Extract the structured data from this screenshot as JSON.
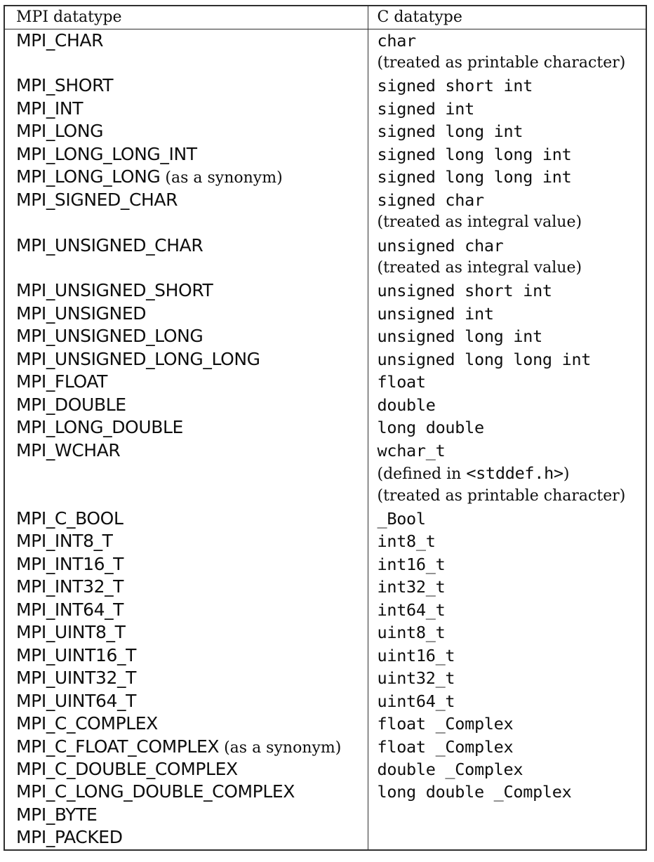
{
  "colors": {
    "background": "#ffffff",
    "text": "#0e0e0e",
    "border": "#2f2f2f"
  },
  "table": {
    "header": {
      "mpi": "MPI datatype",
      "c": "C datatype"
    },
    "rows": [
      {
        "mpi": "MPI_CHAR",
        "note": "",
        "c": [
          [
            "mono",
            "char"
          ]
        ]
      },
      {
        "mpi": "",
        "note": "",
        "c": [
          [
            "serif",
            "(treated as printable character)"
          ]
        ]
      },
      {
        "mpi": "MPI_SHORT",
        "note": "",
        "c": [
          [
            "mono",
            "signed short int"
          ]
        ]
      },
      {
        "mpi": "MPI_INT",
        "note": "",
        "c": [
          [
            "mono",
            "signed int"
          ]
        ]
      },
      {
        "mpi": "MPI_LONG",
        "note": "",
        "c": [
          [
            "mono",
            "signed long int"
          ]
        ]
      },
      {
        "mpi": "MPI_LONG_LONG_INT",
        "note": "",
        "c": [
          [
            "mono",
            "signed long long int"
          ]
        ]
      },
      {
        "mpi": "MPI_LONG_LONG",
        "note": "(as a synonym)",
        "c": [
          [
            "mono",
            "signed long long int"
          ]
        ]
      },
      {
        "mpi": "MPI_SIGNED_CHAR",
        "note": "",
        "c": [
          [
            "mono",
            "signed char"
          ]
        ]
      },
      {
        "mpi": "",
        "note": "",
        "c": [
          [
            "serif",
            "(treated as integral value)"
          ]
        ]
      },
      {
        "mpi": "MPI_UNSIGNED_CHAR",
        "note": "",
        "c": [
          [
            "mono",
            "unsigned char"
          ]
        ]
      },
      {
        "mpi": "",
        "note": "",
        "c": [
          [
            "serif",
            "(treated as integral value)"
          ]
        ]
      },
      {
        "mpi": "MPI_UNSIGNED_SHORT",
        "note": "",
        "c": [
          [
            "mono",
            "unsigned short int"
          ]
        ]
      },
      {
        "mpi": "MPI_UNSIGNED",
        "note": "",
        "c": [
          [
            "mono",
            "unsigned int"
          ]
        ]
      },
      {
        "mpi": "MPI_UNSIGNED_LONG",
        "note": "",
        "c": [
          [
            "mono",
            "unsigned long int"
          ]
        ]
      },
      {
        "mpi": "MPI_UNSIGNED_LONG_LONG",
        "note": "",
        "c": [
          [
            "mono",
            "unsigned long long int"
          ]
        ]
      },
      {
        "mpi": "MPI_FLOAT",
        "note": "",
        "c": [
          [
            "mono",
            "float"
          ]
        ]
      },
      {
        "mpi": "MPI_DOUBLE",
        "note": "",
        "c": [
          [
            "mono",
            "double"
          ]
        ]
      },
      {
        "mpi": "MPI_LONG_DOUBLE",
        "note": "",
        "c": [
          [
            "mono",
            "long double"
          ]
        ]
      },
      {
        "mpi": "MPI_WCHAR",
        "note": "",
        "c": [
          [
            "mono",
            "wchar_t"
          ]
        ]
      },
      {
        "mpi": "",
        "note": "",
        "c": [
          [
            "serif",
            "(defined in "
          ],
          [
            "mono",
            "<stddef.h>"
          ],
          [
            "serif",
            ")"
          ]
        ]
      },
      {
        "mpi": "",
        "note": "",
        "c": [
          [
            "serif",
            "(treated as printable character)"
          ]
        ]
      },
      {
        "mpi": "MPI_C_BOOL",
        "note": "",
        "c": [
          [
            "mono",
            "_Bool"
          ]
        ]
      },
      {
        "mpi": "MPI_INT8_T",
        "note": "",
        "c": [
          [
            "mono",
            "int8_t"
          ]
        ]
      },
      {
        "mpi": "MPI_INT16_T",
        "note": "",
        "c": [
          [
            "mono",
            "int16_t"
          ]
        ]
      },
      {
        "mpi": "MPI_INT32_T",
        "note": "",
        "c": [
          [
            "mono",
            "int32_t"
          ]
        ]
      },
      {
        "mpi": "MPI_INT64_T",
        "note": "",
        "c": [
          [
            "mono",
            "int64_t"
          ]
        ]
      },
      {
        "mpi": "MPI_UINT8_T",
        "note": "",
        "c": [
          [
            "mono",
            "uint8_t"
          ]
        ]
      },
      {
        "mpi": "MPI_UINT16_T",
        "note": "",
        "c": [
          [
            "mono",
            "uint16_t"
          ]
        ]
      },
      {
        "mpi": "MPI_UINT32_T",
        "note": "",
        "c": [
          [
            "mono",
            "uint32_t"
          ]
        ]
      },
      {
        "mpi": "MPI_UINT64_T",
        "note": "",
        "c": [
          [
            "mono",
            "uint64_t"
          ]
        ]
      },
      {
        "mpi": "MPI_C_COMPLEX",
        "note": "",
        "c": [
          [
            "mono",
            "float _Complex"
          ]
        ]
      },
      {
        "mpi": "MPI_C_FLOAT_COMPLEX",
        "note": "(as a synonym)",
        "c": [
          [
            "mono",
            "float _Complex"
          ]
        ]
      },
      {
        "mpi": "MPI_C_DOUBLE_COMPLEX",
        "note": "",
        "c": [
          [
            "mono",
            "double _Complex"
          ]
        ]
      },
      {
        "mpi": "MPI_C_LONG_DOUBLE_COMPLEX",
        "note": "",
        "c": [
          [
            "mono",
            "long double _Complex"
          ]
        ]
      },
      {
        "mpi": "MPI_BYTE",
        "note": "",
        "c": []
      },
      {
        "mpi": "MPI_PACKED",
        "note": "",
        "c": []
      }
    ]
  }
}
